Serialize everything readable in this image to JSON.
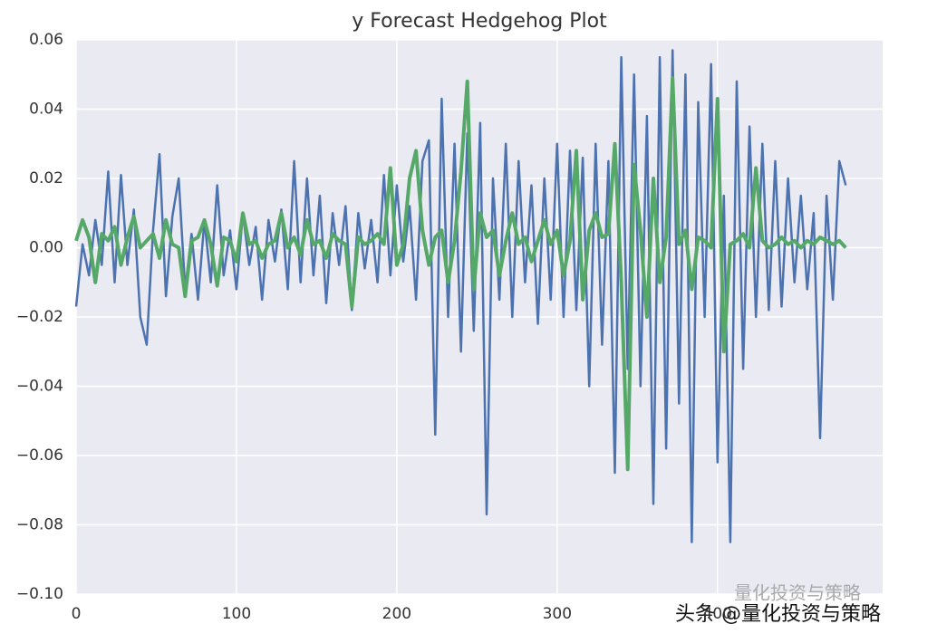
{
  "chart_data": {
    "type": "line",
    "title": "y Forecast Hedgehog Plot",
    "x": [
      0,
      4,
      8,
      12,
      16,
      20,
      24,
      28,
      32,
      36,
      40,
      44,
      48,
      52,
      56,
      60,
      64,
      68,
      72,
      76,
      80,
      84,
      88,
      92,
      96,
      100,
      104,
      108,
      112,
      116,
      120,
      124,
      128,
      132,
      136,
      140,
      144,
      148,
      152,
      156,
      160,
      164,
      168,
      172,
      176,
      180,
      184,
      188,
      192,
      196,
      200,
      204,
      208,
      212,
      216,
      220,
      224,
      228,
      232,
      236,
      240,
      244,
      248,
      252,
      256,
      260,
      264,
      268,
      272,
      276,
      280,
      284,
      288,
      292,
      296,
      300,
      304,
      308,
      312,
      316,
      320,
      324,
      328,
      332,
      336,
      340,
      344,
      348,
      352,
      356,
      360,
      364,
      368,
      372,
      376,
      380,
      384,
      388,
      392,
      396,
      400,
      404,
      408,
      412,
      416,
      420,
      424,
      428,
      432,
      436,
      440,
      444,
      448,
      452,
      456,
      460,
      464,
      468,
      472,
      476,
      480
    ],
    "series": [
      {
        "color": "#4c72b0",
        "values": [
          -0.017,
          0.001,
          -0.008,
          0.008,
          -0.005,
          0.022,
          -0.01,
          0.021,
          -0.005,
          0.011,
          -0.02,
          -0.028,
          0.005,
          0.027,
          -0.014,
          0.009,
          0.02,
          -0.012,
          0.004,
          -0.015,
          0.008,
          -0.01,
          0.018,
          -0.008,
          0.005,
          -0.012,
          0.01,
          -0.005,
          0.006,
          -0.015,
          0.008,
          -0.004,
          0.011,
          -0.012,
          0.025,
          -0.01,
          0.02,
          -0.008,
          0.015,
          -0.016,
          0.01,
          -0.005,
          0.012,
          -0.018,
          0.01,
          -0.006,
          0.008,
          -0.01,
          0.021,
          -0.008,
          0.018,
          -0.004,
          0.012,
          -0.015,
          0.025,
          0.031,
          -0.054,
          0.043,
          -0.02,
          0.03,
          -0.03,
          0.033,
          -0.024,
          0.036,
          -0.077,
          0.02,
          -0.015,
          0.03,
          -0.02,
          0.025,
          -0.01,
          0.018,
          -0.022,
          0.02,
          -0.015,
          0.03,
          -0.02,
          0.028,
          -0.018,
          0.026,
          -0.04,
          0.03,
          -0.028,
          0.025,
          -0.065,
          0.055,
          -0.035,
          0.05,
          -0.04,
          0.038,
          -0.074,
          0.055,
          -0.058,
          0.057,
          -0.045,
          0.05,
          -0.085,
          0.042,
          -0.02,
          0.053,
          -0.062,
          0.015,
          -0.085,
          0.048,
          -0.035,
          0.035,
          -0.02,
          0.03,
          -0.018,
          0.025,
          -0.017,
          0.02,
          -0.01,
          0.015,
          -0.012,
          0.01,
          -0.055,
          0.015,
          -0.015,
          0.025,
          0.018
        ]
      },
      {
        "color": "#55a868",
        "values": [
          0.002,
          0.008,
          0.003,
          -0.01,
          0.004,
          0.002,
          0.006,
          -0.005,
          0.003,
          0.009,
          0.0,
          0.002,
          0.004,
          -0.003,
          0.008,
          0.001,
          0.0,
          -0.014,
          0.002,
          0.003,
          0.008,
          0.001,
          -0.011,
          0.003,
          0.002,
          -0.004,
          0.01,
          0.001,
          0.002,
          -0.003,
          0.001,
          0.002,
          0.01,
          0.0,
          0.003,
          -0.002,
          0.008,
          0.001,
          0.002,
          -0.003,
          0.004,
          0.002,
          0.001,
          -0.017,
          0.003,
          0.001,
          0.002,
          0.004,
          0.001,
          0.023,
          -0.005,
          0.001,
          0.02,
          0.028,
          0.005,
          -0.005,
          0.003,
          0.005,
          -0.01,
          0.002,
          0.022,
          0.048,
          -0.012,
          0.01,
          0.003,
          0.005,
          -0.008,
          0.002,
          0.01,
          0.001,
          0.003,
          -0.004,
          0.002,
          0.008,
          0.001,
          0.005,
          -0.008,
          0.002,
          0.028,
          -0.015,
          0.005,
          0.01,
          0.003,
          0.004,
          0.03,
          -0.01,
          -0.064,
          0.024,
          0.005,
          -0.02,
          0.02,
          -0.01,
          0.003,
          0.049,
          0.001,
          0.005,
          -0.012,
          0.003,
          0.002,
          0.0,
          0.043,
          -0.03,
          0.001,
          0.002,
          0.004,
          0.0,
          0.023,
          0.002,
          0.0,
          0.001,
          0.003,
          0.001,
          0.002,
          0.0,
          0.002,
          0.001,
          0.003,
          0.002,
          0.001,
          0.002,
          0.0
        ]
      }
    ],
    "xlim": [
      0,
      503
    ],
    "xticks": [
      0,
      100,
      200,
      300,
      400
    ],
    "ylim": [
      -0.1,
      0.06
    ],
    "yticks": [
      {
        "value": -0.1,
        "label": "−0.10"
      },
      {
        "value": -0.08,
        "label": "−0.08"
      },
      {
        "value": -0.06,
        "label": "−0.06"
      },
      {
        "value": -0.04,
        "label": "−0.04"
      },
      {
        "value": -0.02,
        "label": "−0.02"
      },
      {
        "value": 0,
        "label": "0.00"
      },
      {
        "value": 0.02,
        "label": "0.02"
      },
      {
        "value": 0.04,
        "label": "0.04"
      },
      {
        "value": 0.06,
        "label": "0.06"
      }
    ],
    "grid": true,
    "annotations": [
      "量化投资与策略",
      "头条 @量化投资与策略"
    ]
  }
}
